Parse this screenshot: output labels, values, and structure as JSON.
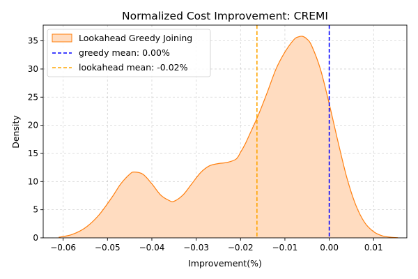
{
  "chart_data": {
    "type": "area",
    "title": "Normalized Cost Improvement: CREMI",
    "xlabel": "Improvement(%)",
    "ylabel": "Density",
    "xlim": [
      -0.0645,
      0.0175
    ],
    "ylim": [
      0,
      37.8
    ],
    "x_ticks": [
      -0.06,
      -0.05,
      -0.04,
      -0.03,
      -0.02,
      -0.01,
      0.0,
      0.01
    ],
    "x_tick_labels": [
      "−0.06",
      "−0.05",
      "−0.04",
      "−0.03",
      "−0.02",
      "−0.01",
      "0.00",
      "0.01"
    ],
    "y_ticks": [
      0,
      5,
      10,
      15,
      20,
      25,
      30,
      35
    ],
    "y_tick_labels": [
      "0",
      "5",
      "10",
      "15",
      "20",
      "25",
      "30",
      "35"
    ],
    "grid": true,
    "legend_position": "top-left",
    "series": [
      {
        "name": "Lookahead Greedy Joining",
        "kind": "kde",
        "fill_color": "#ffdcc0",
        "line_color": "#ff7f0e",
        "x": [
          -0.061,
          -0.058,
          -0.055,
          -0.052,
          -0.049,
          -0.047,
          -0.045,
          -0.044,
          -0.042,
          -0.04,
          -0.038,
          -0.036,
          -0.035,
          -0.033,
          -0.031,
          -0.029,
          -0.027,
          -0.025,
          -0.023,
          -0.021,
          -0.02,
          -0.019,
          -0.018,
          -0.016,
          -0.014,
          -0.012,
          -0.01,
          -0.008,
          -0.007,
          -0.006,
          -0.005,
          -0.004,
          -0.002,
          0.0,
          0.002,
          0.004,
          0.006,
          0.008,
          0.01,
          0.012,
          0.014,
          0.0155
        ],
        "y": [
          0.1,
          0.6,
          1.8,
          4.0,
          7.2,
          9.6,
          11.3,
          11.7,
          11.3,
          9.6,
          7.6,
          6.6,
          6.5,
          7.6,
          9.6,
          11.6,
          12.8,
          13.2,
          13.4,
          14.0,
          15.2,
          16.6,
          18.3,
          21.8,
          25.8,
          30.0,
          33.0,
          35.2,
          35.7,
          35.8,
          35.3,
          34.2,
          30.0,
          23.8,
          17.0,
          10.6,
          5.8,
          2.7,
          1.1,
          0.35,
          0.1,
          0.02
        ]
      }
    ],
    "reference_lines": [
      {
        "name": "greedy mean: 0.00%",
        "x": 0.0,
        "color": "#0000ff",
        "style": "dashed"
      },
      {
        "name": "lookahead mean: -0.02%",
        "x": -0.0163,
        "color": "#ffa500",
        "style": "dashed"
      }
    ]
  }
}
